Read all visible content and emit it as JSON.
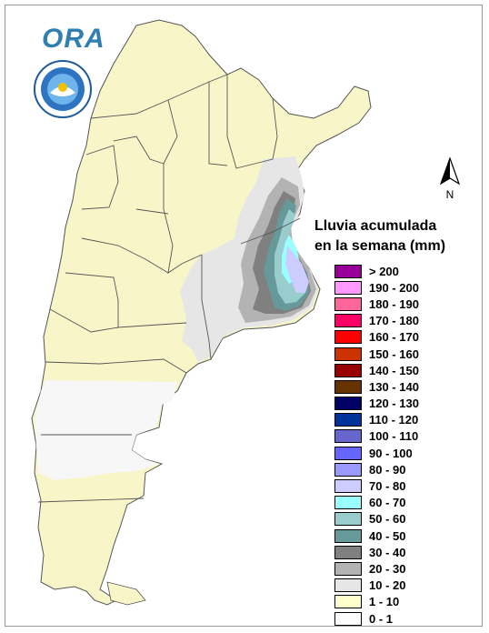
{
  "logo": {
    "text": "ORA",
    "seal_text": "SERVICIO METEOROLOGICO NACIONAL · ARGENTINA"
  },
  "north_arrow": {
    "label": "N"
  },
  "legend": {
    "title_line1": "Lluvia acumulada",
    "title_line2": "en la semana (mm)",
    "items": [
      {
        "label": "> 200",
        "color": "#990099"
      },
      {
        "label": "190 - 200",
        "color": "#ff99ff"
      },
      {
        "label": "180 - 190",
        "color": "#ff6699"
      },
      {
        "label": "170 - 180",
        "color": "#ff0066"
      },
      {
        "label": "160 - 170",
        "color": "#ff0000"
      },
      {
        "label": "150 - 160",
        "color": "#cc3300"
      },
      {
        "label": "140 - 150",
        "color": "#990000"
      },
      {
        "label": "130 - 140",
        "color": "#663300"
      },
      {
        "label": "120 - 130",
        "color": "#000066"
      },
      {
        "label": "110 - 120",
        "color": "#003399"
      },
      {
        "label": "100 - 110",
        "color": "#6666cc"
      },
      {
        "label": "90 - 100",
        "color": "#6666ff"
      },
      {
        "label": "80 - 90",
        "color": "#9999ff"
      },
      {
        "label": "70 - 80",
        "color": "#ccccff"
      },
      {
        "label": "60 - 70",
        "color": "#99ffff"
      },
      {
        "label": "50 - 60",
        "color": "#99cccc"
      },
      {
        "label": "40 - 50",
        "color": "#669999"
      },
      {
        "label": "30 - 40",
        "color": "#808080"
      },
      {
        "label": "20 - 30",
        "color": "#b3b3b3"
      },
      {
        "label": "10 - 20",
        "color": "#e6e6e6"
      },
      {
        "label": "1 - 10",
        "color": "#ffffcc"
      },
      {
        "label": "0 - 1",
        "color": "#ffffff"
      }
    ]
  },
  "colors": {
    "base": "#f8f6c8",
    "dry": "#f7f7f7",
    "border": "#444444"
  }
}
